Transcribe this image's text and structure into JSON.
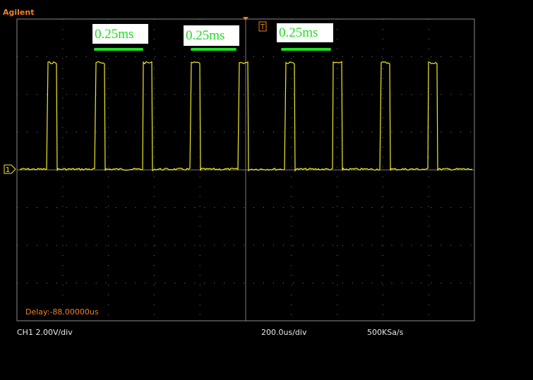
{
  "brand": "Agilent",
  "markers": {
    "trigger": "T",
    "channel": "1"
  },
  "annotations": [
    "0.25ms",
    "0.25ms",
    "0.25ms"
  ],
  "delay": "Delay:-88.00000us",
  "status": {
    "channel": "CH1 2.00V/div",
    "timebase": "200.0us/div",
    "sample_rate": "500KSa/s"
  }
}
